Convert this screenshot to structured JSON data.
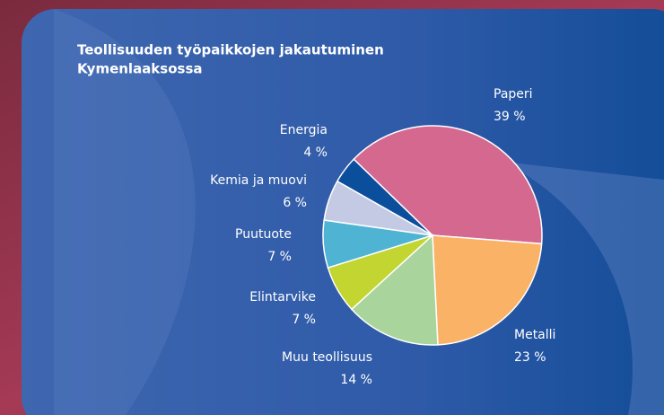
{
  "chart_data": {
    "type": "pie",
    "title": [
      "Teollisuuden  työpaikkojen jakautuminen",
      "Kymenlaaksossa"
    ],
    "categories": [
      "Paperi",
      "Metalli",
      "Muu teollisuus",
      "Elintarvike",
      "Puutuote",
      "Kemia ja muovi",
      "Energia"
    ],
    "values": [
      39,
      23,
      14,
      7,
      7,
      6,
      4
    ],
    "value_labels": [
      "39 %",
      "23 %",
      "14 %",
      "7 %",
      "7 %",
      "6 %",
      "4 %"
    ],
    "colors": [
      "#d4688f",
      "#f9b266",
      "#a9d59c",
      "#c2d531",
      "#4fb4d4",
      "#c4cae4",
      "#0b4f9c"
    ]
  }
}
